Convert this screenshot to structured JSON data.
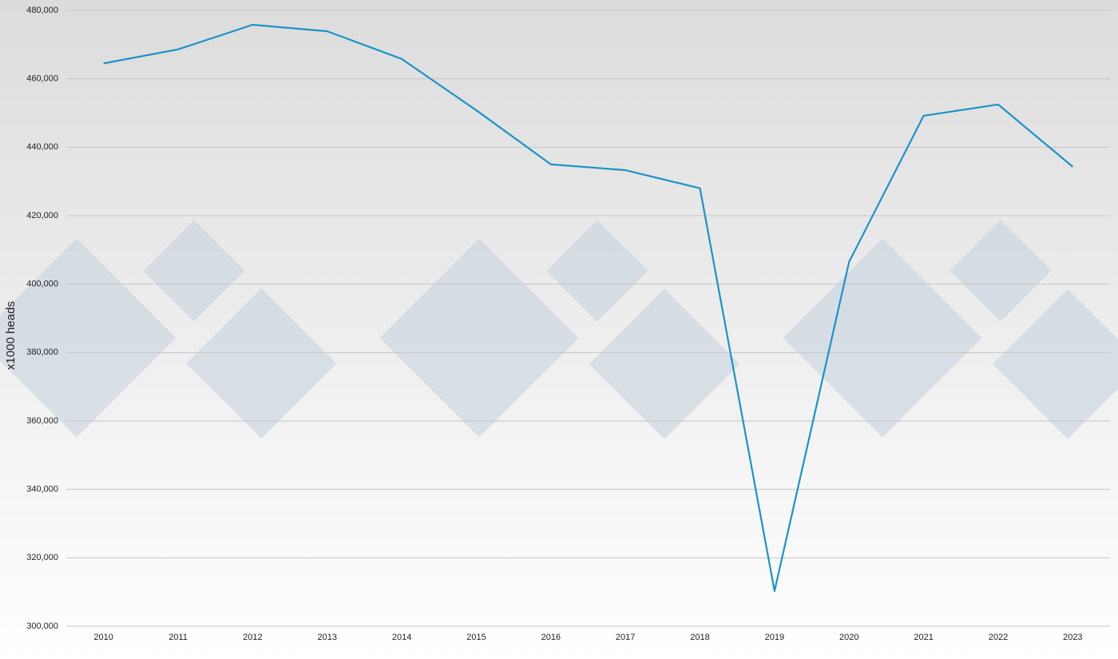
{
  "chart_data": {
    "type": "line",
    "y_label": "x1000 heads",
    "categories": [
      "2010",
      "2011",
      "2012",
      "2013",
      "2014",
      "2015",
      "2016",
      "2017",
      "2018",
      "2019",
      "2020",
      "2021",
      "2022",
      "2023"
    ],
    "series": [
      {
        "color": "#1a94c8",
        "values": [
          464500,
          468600,
          475800,
          473900,
          465800,
          450800,
          435000,
          433300,
          428000,
          310300,
          406500,
          449200,
          452500,
          434300
        ]
      }
    ],
    "ylim": [
      300000,
      480000
    ],
    "yticks": [
      {
        "value": 300000,
        "label": "300,000"
      },
      {
        "value": 320000,
        "label": "320,000"
      },
      {
        "value": 340000,
        "label": "340,000"
      },
      {
        "value": 360000,
        "label": "360,000"
      },
      {
        "value": 380000,
        "label": "380,000"
      },
      {
        "value": 400000,
        "label": "400,000"
      },
      {
        "value": 420000,
        "label": "420,000"
      },
      {
        "value": 440000,
        "label": "440,000"
      },
      {
        "value": 460000,
        "label": "460,000"
      },
      {
        "value": 480000,
        "label": "480,000"
      }
    ],
    "grid": true
  }
}
